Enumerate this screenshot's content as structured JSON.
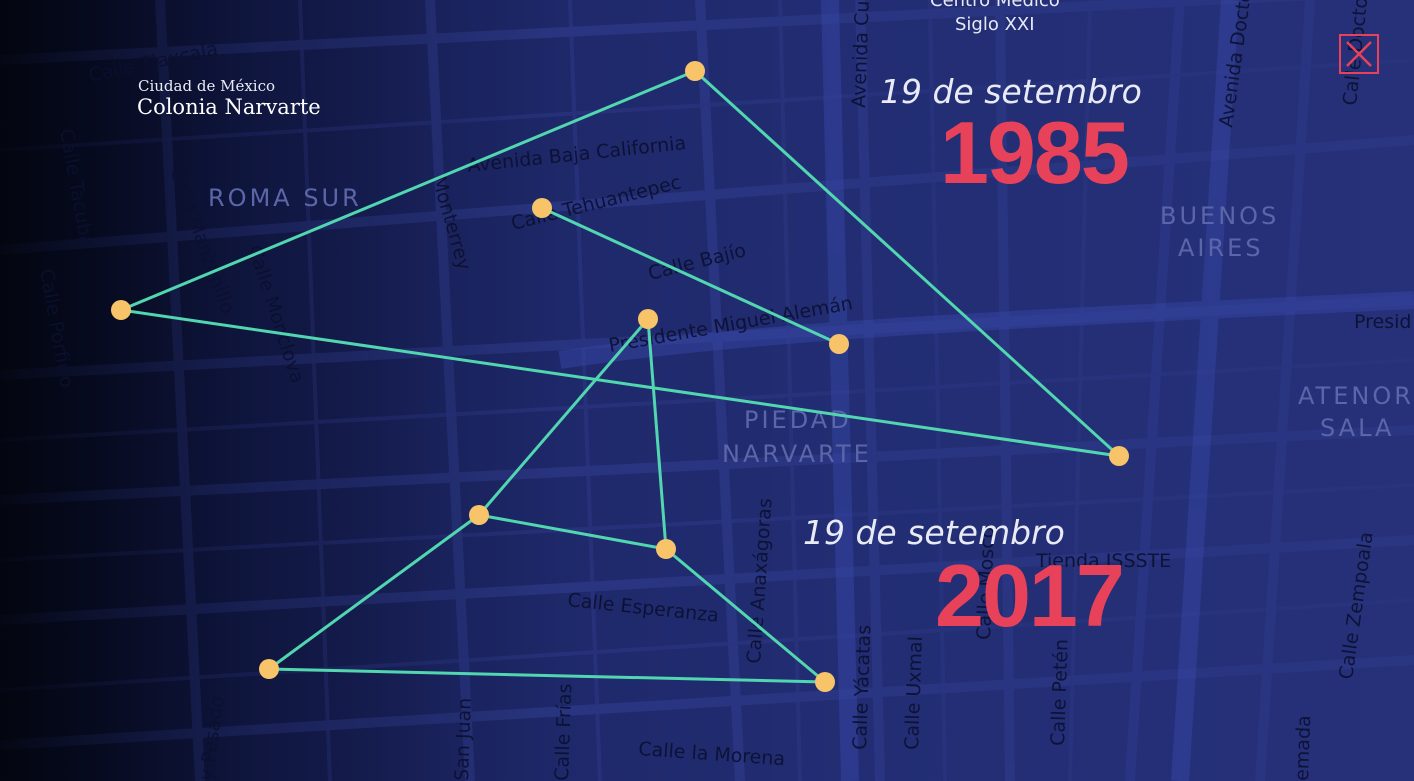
{
  "place": {
    "city": "Ciudad de México",
    "colonia": "Colonia Narvarte"
  },
  "events": [
    {
      "date": "19 de setembro",
      "year": "1985"
    },
    {
      "date": "19 de setembro",
      "year": "2017"
    }
  ],
  "neighborhoods": [
    "ROMA SUR",
    "BUENOS",
    "AIRES",
    "PIEDAD",
    "NARVARTE",
    "ATENOR",
    "SALA"
  ],
  "landmarks": [
    "Centro Medico",
    "Siglo XXI",
    "Tienda ISSSTE"
  ],
  "streets": [
    "Calle Tlaxcala",
    "Avenida Baja California",
    "Calle Manzanillo",
    "Calle Monclova",
    "Monterrey",
    "Calle Tehuantepec",
    "Calle Bajío",
    "Presidente Miguel Alemán",
    "Avenida Cu",
    "Avenida Doctor",
    "Calle Doctor",
    "Presid",
    "Calle Anaxágoras",
    "Calle Esperanza",
    "Calle Yácatas",
    "Calle Uxmal",
    "Calle Petén",
    "Calle Zempoala",
    "Calle la Morena",
    "San Juan",
    "Calle Frías",
    "y Pesado",
    "Calle Mosco",
    "emada",
    "Calle Porfirio",
    "Calle Tacuba"
  ],
  "colors": {
    "line": "#52d6b0",
    "node": "#f7c46a",
    "year": "#e8415a",
    "background": "#222d73"
  },
  "icons": {
    "close": "close-icon"
  }
}
